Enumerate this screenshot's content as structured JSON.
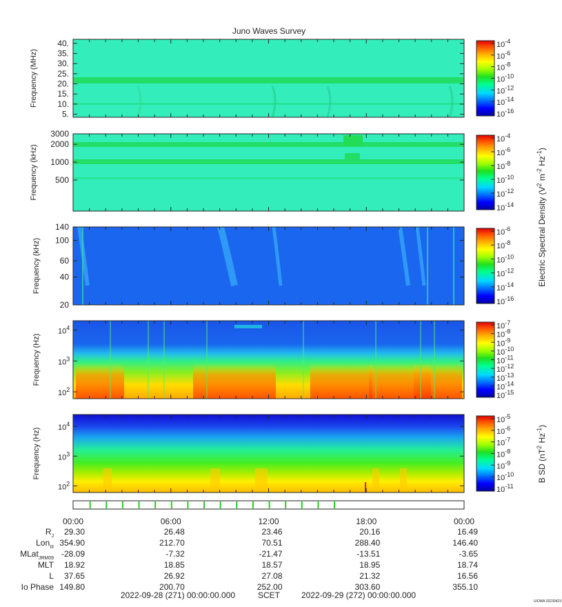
{
  "title": "Juno Waves Survey",
  "colors": {
    "scale": [
      "#0000a8",
      "#0000ff",
      "#0070ff",
      "#00d8ff",
      "#00ff90",
      "#20e020",
      "#a0ff00",
      "#ffff00",
      "#ffb000",
      "#ff5000",
      "#e00000"
    ],
    "background_hf": "#33eebb",
    "band_hf": "#22dd66",
    "background_lf": "#1a66ee"
  },
  "panels": [
    {
      "id": "p1",
      "ylabel": "Frequency (MHz)",
      "yscale": "linear",
      "ylim": [
        3.5,
        42
      ],
      "yticks": [
        "5.",
        "10.",
        "15.",
        "20.",
        "25.",
        "30.",
        "35.",
        "40."
      ],
      "ytick_values": [
        5,
        10,
        15,
        20,
        25,
        30,
        35,
        40
      ],
      "cbar_ticks": [
        {
          "base": "10",
          "exp": "-4"
        },
        {
          "base": "10",
          "exp": "-6"
        },
        {
          "base": "10",
          "exp": "-8"
        },
        {
          "base": "10",
          "exp": "-10"
        },
        {
          "base": "10",
          "exp": "-12"
        },
        {
          "base": "10",
          "exp": "-14"
        },
        {
          "base": "10",
          "exp": "-16"
        }
      ],
      "cbar_label": ""
    },
    {
      "id": "p2",
      "ylabel": "Frequency (kHz)",
      "yscale": "log",
      "ylim": [
        150,
        3000
      ],
      "yticks": [
        "500",
        "1000",
        "2000",
        "3000"
      ],
      "ytick_values": [
        500,
        1000,
        2000,
        3000
      ],
      "cbar_ticks": [
        {
          "base": "10",
          "exp": "-4"
        },
        {
          "base": "10",
          "exp": "-6"
        },
        {
          "base": "10",
          "exp": "-8"
        },
        {
          "base": "10",
          "exp": "-10"
        },
        {
          "base": "10",
          "exp": "-12"
        },
        {
          "base": "10",
          "exp": "-14"
        }
      ],
      "cbar_label": "Electric Spectral Density (V2 m-2 Hz-1)"
    },
    {
      "id": "p3",
      "ylabel": "Frequency (kHz)",
      "yscale": "log",
      "ylim": [
        20,
        140
      ],
      "yticks": [
        "20",
        "40",
        "60",
        "100",
        "140"
      ],
      "ytick_values": [
        20,
        40,
        60,
        100,
        140
      ],
      "cbar_ticks": [
        {
          "base": "10",
          "exp": "-6"
        },
        {
          "base": "10",
          "exp": "-8"
        },
        {
          "base": "10",
          "exp": "-10"
        },
        {
          "base": "10",
          "exp": "-12"
        },
        {
          "base": "10",
          "exp": "-14"
        },
        {
          "base": "10",
          "exp": "-16"
        }
      ],
      "cbar_label": ""
    },
    {
      "id": "p4",
      "ylabel": "Frequency (Hz)",
      "yscale": "log",
      "ylim": [
        60,
        20000
      ],
      "yticks": [
        {
          "base": "10",
          "exp": "2"
        },
        {
          "base": "10",
          "exp": "3"
        },
        {
          "base": "10",
          "exp": "4"
        }
      ],
      "ytick_values": [
        100,
        1000,
        10000
      ],
      "cbar_ticks": [
        {
          "base": "10",
          "exp": "-7"
        },
        {
          "base": "10",
          "exp": "-8"
        },
        {
          "base": "10",
          "exp": "-9"
        },
        {
          "base": "10",
          "exp": "-10"
        },
        {
          "base": "10",
          "exp": "-11"
        },
        {
          "base": "10",
          "exp": "-12"
        },
        {
          "base": "10",
          "exp": "-13"
        },
        {
          "base": "10",
          "exp": "-14"
        },
        {
          "base": "10",
          "exp": "-15"
        }
      ],
      "cbar_label": ""
    },
    {
      "id": "p5",
      "ylabel": "Frequency (Hz)",
      "yscale": "log",
      "ylim": [
        60,
        25000
      ],
      "yticks": [
        {
          "base": "10",
          "exp": "2"
        },
        {
          "base": "10",
          "exp": "3"
        },
        {
          "base": "10",
          "exp": "4"
        }
      ],
      "ytick_values": [
        100,
        1000,
        10000
      ],
      "cbar_ticks": [
        {
          "base": "10",
          "exp": "-5"
        },
        {
          "base": "10",
          "exp": "-6"
        },
        {
          "base": "10",
          "exp": "-7"
        },
        {
          "base": "10",
          "exp": "-8"
        },
        {
          "base": "10",
          "exp": "-9"
        },
        {
          "base": "10",
          "exp": "-10"
        },
        {
          "base": "10",
          "exp": "-11"
        }
      ],
      "cbar_label": "B SD (nT2 Hz-1)"
    }
  ],
  "chart_data": {
    "type": "heatmap",
    "title": "Juno Waves Survey",
    "x_range": [
      "2022-09-28 00:00",
      "2022-09-29 00:00"
    ],
    "time_ticks": [
      "00:00",
      "06:00",
      "12:00",
      "18:00",
      "00:00"
    ],
    "ephemeris_rows": [
      {
        "label": "R",
        "sub": "J",
        "values": [
          "29.30",
          "26.48",
          "23.46",
          "20.16",
          "16.49"
        ]
      },
      {
        "label": "Lon",
        "sub": "III",
        "values": [
          "354.90",
          "212.70",
          "70.51",
          "288.40",
          "146.40"
        ]
      },
      {
        "label": "MLat",
        "sub": "JRM09",
        "values": [
          "-28.09",
          "-7.32",
          "-21.47",
          "-13.51",
          "-3.65"
        ]
      },
      {
        "label": "MLT",
        "sub": "",
        "values": [
          "18.92",
          "18.85",
          "18.57",
          "18.95",
          "18.74"
        ]
      },
      {
        "label": "L",
        "sub": "",
        "values": [
          "37.65",
          "26.92",
          "27.08",
          "21.32",
          "16.56"
        ]
      },
      {
        "label": "Io Phase",
        "sub": "",
        "values": [
          "149.80",
          "200.70",
          "252.00",
          "303.60",
          "355.10"
        ]
      }
    ],
    "mode_marks_hours": [
      1.0,
      2.0,
      3.0,
      4.0,
      5.0,
      6.0,
      7.0,
      8.0,
      9.0,
      10.0,
      11.0,
      12.0,
      13.0,
      14.0,
      15.0,
      16.0
    ]
  },
  "footer": {
    "start": "2022-09-28 (271) 00:00:00.000",
    "scet": "SCET",
    "end": "2022-09-29 (272) 00:00:00.000",
    "stamp": "UIOWA 20230423"
  }
}
